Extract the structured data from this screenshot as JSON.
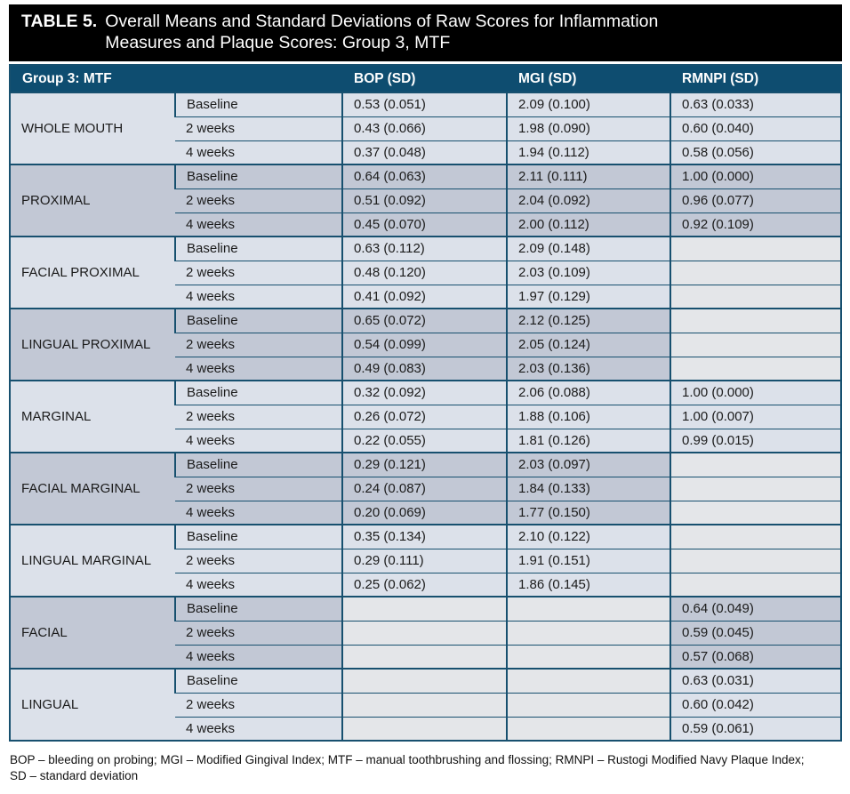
{
  "title": {
    "label": "TABLE 5.",
    "text": "Overall Means and Standard Deviations of Raw Scores for Inflammation Measures and Plaque Scores: Group 3, MTF"
  },
  "header": {
    "group_label": "Group 3: MTF",
    "columns": [
      "BOP (SD)",
      "MGI (SD)",
      "RMNPI (SD)"
    ]
  },
  "table": {
    "sections": [
      {
        "label": "WHOLE MOUTH",
        "shade": "light",
        "rows": [
          {
            "period": "Baseline",
            "bop": "0.53 (0.051)",
            "mgi": "2.09 (0.100)",
            "rmnpi": "0.63 (0.033)"
          },
          {
            "period": "2 weeks",
            "bop": "0.43 (0.066)",
            "mgi": "1.98 (0.090)",
            "rmnpi": "0.60 (0.040)"
          },
          {
            "period": "4 weeks",
            "bop": "0.37 (0.048)",
            "mgi": "1.94 (0.112)",
            "rmnpi": "0.58 (0.056)"
          }
        ]
      },
      {
        "label": "PROXIMAL",
        "shade": "dark",
        "rows": [
          {
            "period": "Baseline",
            "bop": "0.64 (0.063)",
            "mgi": "2.11 (0.111)",
            "rmnpi": "1.00 (0.000)"
          },
          {
            "period": "2 weeks",
            "bop": "0.51 (0.092)",
            "mgi": "2.04 (0.092)",
            "rmnpi": "0.96 (0.077)"
          },
          {
            "period": "4 weeks",
            "bop": "0.45 (0.070)",
            "mgi": "2.00 (0.112)",
            "rmnpi": "0.92 (0.109)"
          }
        ]
      },
      {
        "label": "FACIAL PROXIMAL",
        "shade": "light",
        "rows": [
          {
            "period": "Baseline",
            "bop": "0.63 (0.112)",
            "mgi": "2.09 (0.148)",
            "rmnpi": ""
          },
          {
            "period": "2 weeks",
            "bop": "0.48 (0.120)",
            "mgi": "2.03 (0.109)",
            "rmnpi": ""
          },
          {
            "period": "4 weeks",
            "bop": "0.41 (0.092)",
            "mgi": "1.97 (0.129)",
            "rmnpi": ""
          }
        ]
      },
      {
        "label": "LINGUAL PROXIMAL",
        "shade": "dark",
        "rows": [
          {
            "period": "Baseline",
            "bop": "0.65 (0.072)",
            "mgi": "2.12 (0.125)",
            "rmnpi": ""
          },
          {
            "period": "2 weeks",
            "bop": "0.54 (0.099)",
            "mgi": "2.05 (0.124)",
            "rmnpi": ""
          },
          {
            "period": "4 weeks",
            "bop": "0.49 (0.083)",
            "mgi": "2.03 (0.136)",
            "rmnpi": ""
          }
        ]
      },
      {
        "label": "MARGINAL",
        "shade": "light",
        "rows": [
          {
            "period": "Baseline",
            "bop": "0.32 (0.092)",
            "mgi": "2.06 (0.088)",
            "rmnpi": "1.00 (0.000)"
          },
          {
            "period": "2 weeks",
            "bop": "0.26 (0.072)",
            "mgi": "1.88 (0.106)",
            "rmnpi": "1.00 (0.007)"
          },
          {
            "period": "4 weeks",
            "bop": "0.22 (0.055)",
            "mgi": "1.81 (0.126)",
            "rmnpi": "0.99 (0.015)"
          }
        ]
      },
      {
        "label": "FACIAL MARGINAL",
        "shade": "dark",
        "rows": [
          {
            "period": "Baseline",
            "bop": "0.29 (0.121)",
            "mgi": "2.03 (0.097)",
            "rmnpi": ""
          },
          {
            "period": "2 weeks",
            "bop": "0.24 (0.087)",
            "mgi": "1.84 (0.133)",
            "rmnpi": ""
          },
          {
            "period": "4 weeks",
            "bop": "0.20 (0.069)",
            "mgi": "1.77 (0.150)",
            "rmnpi": ""
          }
        ]
      },
      {
        "label": "LINGUAL MARGINAL",
        "shade": "light",
        "rows": [
          {
            "period": "Baseline",
            "bop": "0.35 (0.134)",
            "mgi": "2.10 (0.122)",
            "rmnpi": ""
          },
          {
            "period": "2 weeks",
            "bop": "0.29 (0.111)",
            "mgi": "1.91 (0.151)",
            "rmnpi": ""
          },
          {
            "period": "4 weeks",
            "bop": "0.25 (0.062)",
            "mgi": "1.86 (0.145)",
            "rmnpi": ""
          }
        ]
      },
      {
        "label": "FACIAL",
        "shade": "dark",
        "rows": [
          {
            "period": "Baseline",
            "bop": "",
            "mgi": "",
            "rmnpi": "0.64 (0.049)"
          },
          {
            "period": "2 weeks",
            "bop": "",
            "mgi": "",
            "rmnpi": "0.59 (0.045)"
          },
          {
            "period": "4 weeks",
            "bop": "",
            "mgi": "",
            "rmnpi": "0.57 (0.068)"
          }
        ]
      },
      {
        "label": "LINGUAL",
        "shade": "light",
        "rows": [
          {
            "period": "Baseline",
            "bop": "",
            "mgi": "",
            "rmnpi": "0.63 (0.031)"
          },
          {
            "period": "2 weeks",
            "bop": "",
            "mgi": "",
            "rmnpi": "0.60 (0.042)"
          },
          {
            "period": "4 weeks",
            "bop": "",
            "mgi": "",
            "rmnpi": "0.59 (0.061)"
          }
        ]
      }
    ]
  },
  "footnote": {
    "lines": [
      "BOP – bleeding on probing; MGI – Modified Gingival Index; MTF – manual toothbrushing and flossing; RMNPI – Rustogi Modified Navy Plaque Index;",
      "SD – standard deviation"
    ]
  },
  "colors": {
    "title_bg": "#000000",
    "header_bg": "#0e4d70",
    "row_light": "#dce1ea",
    "row_dark": "#c2c8d5",
    "empty_cell": "#e4e6e9",
    "border": "#17506f"
  }
}
